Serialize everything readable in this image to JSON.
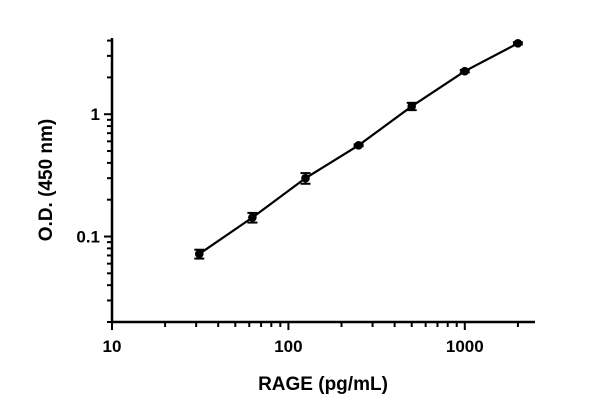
{
  "chart_data": {
    "type": "scatter",
    "title": "",
    "xlabel": "RAGE (pg/mL)",
    "ylabel": "O.D. (450 nm)",
    "xscale": "log",
    "yscale": "log",
    "xlim": [
      10,
      2500
    ],
    "ylim": [
      0.02,
      4.2
    ],
    "xticks": [
      10,
      100,
      1000
    ],
    "xtick_labels": [
      "10",
      "100",
      "1000"
    ],
    "yticks": [
      0.1,
      1
    ],
    "ytick_labels": [
      "0.1",
      "1"
    ],
    "grid": false,
    "fit_line": true,
    "color": "#000000",
    "series": [
      {
        "x": [
          31.25,
          62.5,
          125,
          250,
          500,
          1000,
          2000
        ],
        "y": [
          0.072,
          0.143,
          0.3,
          0.557,
          1.16,
          2.25,
          3.8
        ],
        "error": [
          0.006,
          0.013,
          0.03,
          0.01,
          0.08,
          0.05,
          0.08
        ]
      }
    ]
  }
}
